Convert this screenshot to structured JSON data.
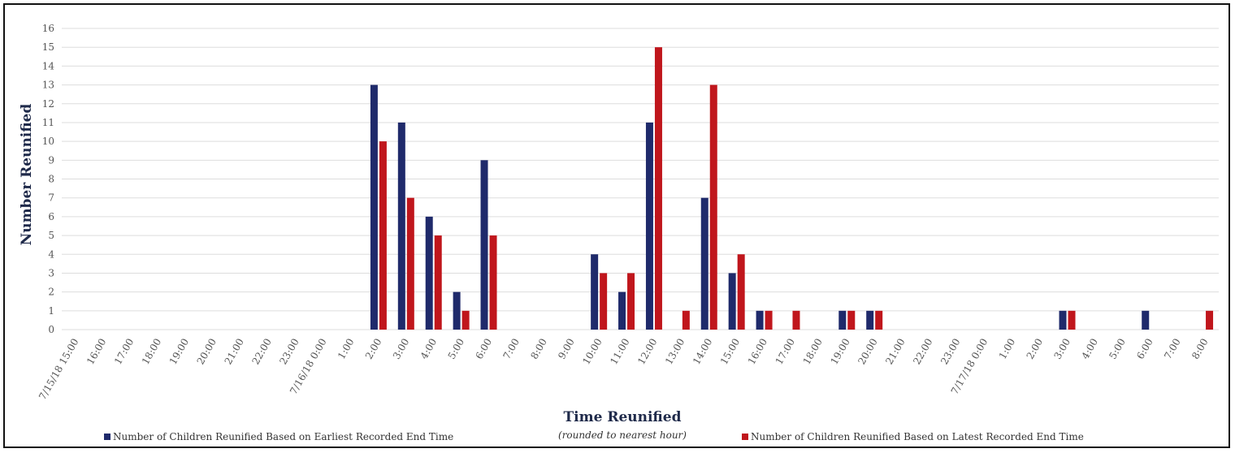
{
  "chart_data": {
    "type": "bar",
    "ylabel": "Number Reunified",
    "xlabel": "Time Reunified",
    "xlabel_sub": "(rounded to nearest hour)",
    "ylim": [
      0,
      16
    ],
    "yticks": [
      0,
      1,
      2,
      3,
      4,
      5,
      6,
      7,
      8,
      9,
      10,
      11,
      12,
      13,
      14,
      15,
      16
    ],
    "grid": true,
    "legend_position": "bottom",
    "colors": {
      "earliest": "#1f2a6b",
      "latest": "#c0161c",
      "grid": "#dddddd"
    },
    "categories": [
      "7/15/18 15:00",
      "16:00",
      "17:00",
      "18:00",
      "19:00",
      "20:00",
      "21:00",
      "22:00",
      "23:00",
      "7/16/18 0:00",
      "1:00",
      "2:00",
      "3:00",
      "4:00",
      "5:00",
      "6:00",
      "7:00",
      "8:00",
      "9:00",
      "10:00",
      "11:00",
      "12:00",
      "13:00",
      "14:00",
      "15:00",
      "16:00",
      "17:00",
      "18:00",
      "19:00",
      "20:00",
      "21:00",
      "22:00",
      "23:00",
      "7/17/18 0:00",
      "1:00",
      "2:00",
      "3:00",
      "4:00",
      "5:00",
      "6:00",
      "7:00",
      "8:00"
    ],
    "series": [
      {
        "name": "Number of Children Reunified Based on Earliest Recorded End Time",
        "values": [
          0,
          0,
          0,
          0,
          0,
          0,
          0,
          0,
          0,
          0,
          0,
          13,
          11,
          6,
          2,
          9,
          0,
          0,
          0,
          4,
          2,
          11,
          0,
          7,
          3,
          1,
          0,
          0,
          1,
          1,
          0,
          0,
          0,
          0,
          0,
          0,
          1,
          0,
          0,
          1,
          0,
          0
        ]
      },
      {
        "name": "Number of Children Reunified Based on Latest Recorded End Time",
        "values": [
          0,
          0,
          0,
          0,
          0,
          0,
          0,
          0,
          0,
          0,
          0,
          10,
          7,
          5,
          1,
          5,
          0,
          0,
          0,
          3,
          3,
          15,
          1,
          13,
          4,
          1,
          1,
          0,
          1,
          1,
          0,
          0,
          0,
          0,
          0,
          0,
          1,
          0,
          0,
          0,
          0,
          1
        ]
      }
    ]
  }
}
